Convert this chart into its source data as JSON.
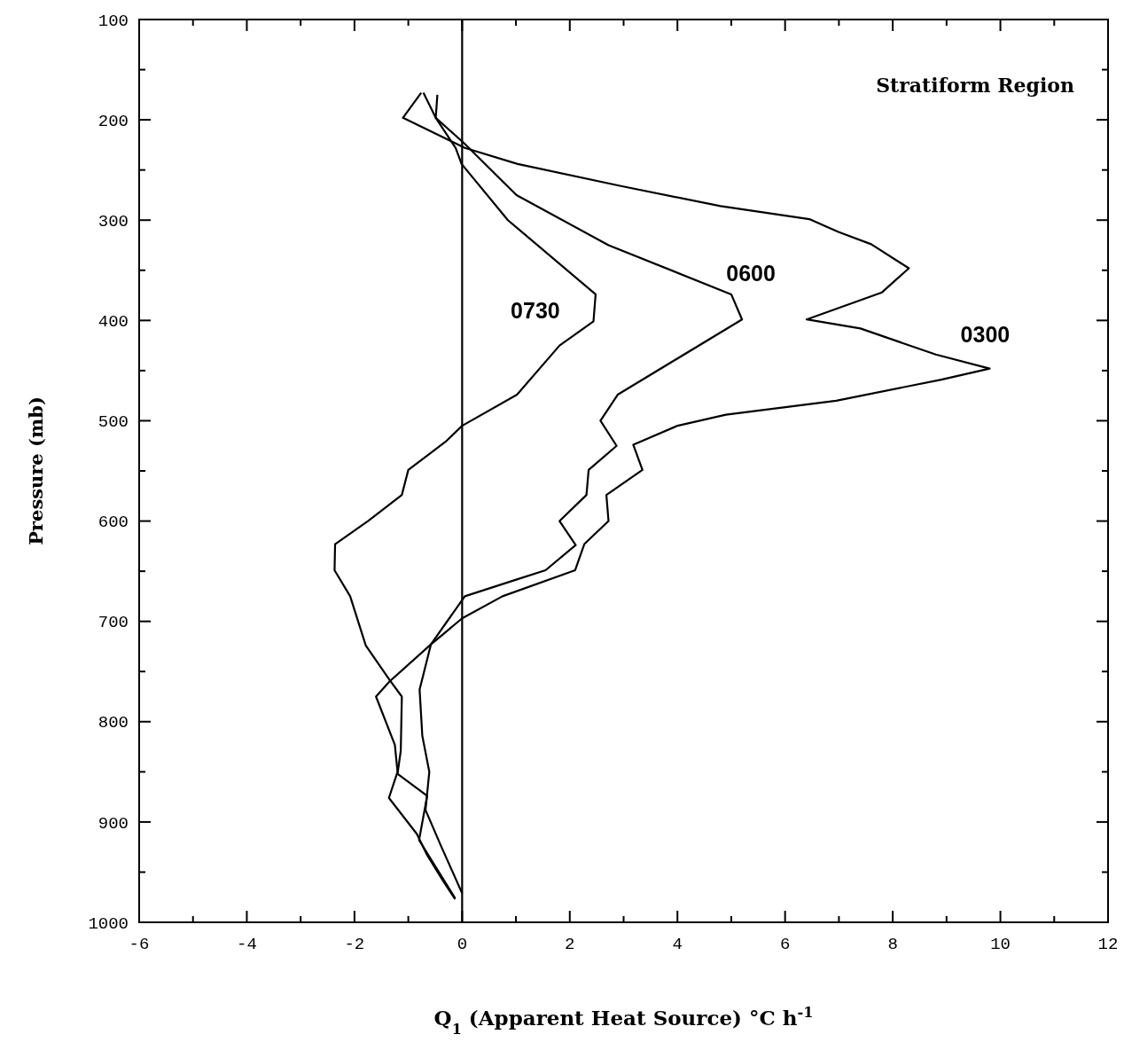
{
  "chart_data": {
    "type": "line",
    "xlabel": "Q$_{1}$ (Apparent Heat Source) °C h$^{-1}$",
    "ylabel": "Pressure (mb)",
    "xlim": [
      -6,
      12
    ],
    "ylim": [
      1000,
      100
    ],
    "xticks": [
      -6,
      {
        "value": -5,
        "label": null
      },
      -4,
      {
        "value": -3,
        "label": null
      },
      -2,
      {
        "value": -1,
        "label": null
      },
      0,
      {
        "value": 1,
        "label": null
      },
      2,
      {
        "value": 3,
        "label": null
      },
      4,
      {
        "value": 5,
        "label": null
      },
      6,
      {
        "value": 7,
        "label": null
      },
      8,
      {
        "value": 9,
        "label": null
      },
      10,
      {
        "value": 11,
        "label": null
      },
      12
    ],
    "yticks": [
      100,
      {
        "value": 150,
        "label": null
      },
      200,
      {
        "value": 250,
        "label": null
      },
      300,
      {
        "value": 350,
        "label": null
      },
      400,
      {
        "value": 450,
        "label": null
      },
      500,
      {
        "value": 550,
        "label": null
      },
      600,
      {
        "value": 650,
        "label": null
      },
      700,
      {
        "value": 750,
        "label": null
      },
      800,
      {
        "value": 850,
        "label": null
      },
      900,
      {
        "value": 950,
        "label": null
      },
      1000
    ],
    "grid": false,
    "marker": "none",
    "line_style": "solid",
    "ref_lines": [
      {
        "axis": "x",
        "value": 0,
        "label": null,
        "color": "#000000"
      }
    ],
    "series": [
      {
        "name": "0730",
        "color": "#000000",
        "x": [
          -0.72,
          -0.49,
          -0.12,
          -0.01,
          0.85,
          2.48,
          2.44,
          1.81,
          1.02,
          0.0,
          -0.31,
          -1.0,
          -1.12,
          -1.75,
          -2.36,
          -2.37,
          -2.08,
          -1.79,
          -1.34,
          -1.12,
          -1.14,
          -1.2,
          -0.65,
          -0.8,
          -0.13
        ],
        "values": [
          173,
          198,
          228,
          244,
          300,
          374,
          401,
          425,
          474,
          505,
          521,
          549,
          574,
          600,
          623,
          649,
          675,
          724,
          759,
          775,
          829,
          852,
          874,
          918,
          976
        ]
      },
      {
        "name": "0600",
        "color": "#000000",
        "x": [
          -0.46,
          -0.49,
          0.05,
          1.01,
          2.72,
          5.0,
          5.2,
          2.89,
          2.57,
          2.87,
          2.35,
          2.31,
          1.81,
          2.11,
          1.55,
          1.03,
          0.05,
          -0.58,
          -0.79,
          -0.74,
          -0.61,
          -0.68,
          -0.4,
          0.0
        ],
        "values": [
          175,
          198,
          224,
          275,
          325,
          374,
          399,
          474,
          500,
          525,
          549,
          574,
          600,
          624,
          649,
          658,
          675,
          723,
          768,
          814,
          850,
          888,
          923,
          971
        ]
      },
      {
        "name": "0300",
        "color": "#000000",
        "x": [
          -0.76,
          -1.1,
          0.05,
          1.03,
          2.95,
          4.8,
          6.45,
          7.0,
          7.6,
          8.3,
          7.8,
          6.4,
          7.4,
          8.8,
          9.8,
          8.9,
          6.95,
          4.9,
          4.0,
          3.18,
          3.35,
          2.68,
          2.72,
          2.27,
          2.1,
          0.75,
          0.0,
          -0.58,
          -1.35,
          -1.6,
          -1.25,
          -1.2,
          -1.36,
          -0.84,
          -0.66,
          -0.35,
          -0.13
        ],
        "values": [
          173,
          198,
          228,
          244,
          266,
          286,
          299,
          312,
          324,
          348,
          372,
          399,
          408,
          434,
          448,
          459,
          480,
          494,
          505,
          524,
          549,
          574,
          600,
          623,
          649,
          675,
          697,
          723,
          760,
          775,
          823,
          850,
          876,
          912,
          932,
          959,
          977
        ]
      }
    ],
    "annotations": [
      "Stratiform Region"
    ]
  }
}
